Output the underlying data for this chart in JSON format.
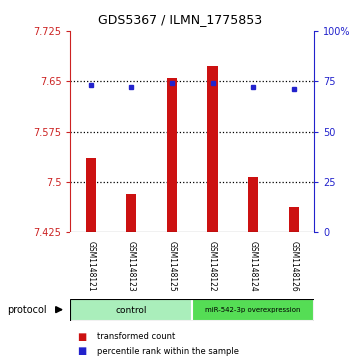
{
  "title": "GDS5367 / ILMN_1775853",
  "samples": [
    "GSM1148121",
    "GSM1148123",
    "GSM1148125",
    "GSM1148122",
    "GSM1148124",
    "GSM1148126"
  ],
  "transformed_counts": [
    7.535,
    7.482,
    7.655,
    7.672,
    7.508,
    7.462
  ],
  "percentile_ranks": [
    73,
    72,
    74,
    74,
    72,
    71
  ],
  "bar_color": "#cc1111",
  "dot_color": "#2222cc",
  "ylim_left": [
    7.425,
    7.725
  ],
  "ylim_right": [
    0,
    100
  ],
  "yticks_left": [
    7.425,
    7.5,
    7.575,
    7.65,
    7.725
  ],
  "yticks_right": [
    0,
    25,
    50,
    75,
    100
  ],
  "ytick_labels_left": [
    "7.425",
    "7.5",
    "7.575",
    "7.65",
    "7.725"
  ],
  "ytick_labels_right": [
    "0",
    "25",
    "50",
    "75",
    "100%"
  ],
  "hlines": [
    7.5,
    7.575,
    7.65
  ],
  "bar_width": 0.25,
  "background_color": "#ffffff",
  "legend_bar_label": "transformed count",
  "legend_dot_label": "percentile rank within the sample",
  "protocol_label": "protocol",
  "group_label_control": "control",
  "group_label_mir": "miR-542-3p overexpression",
  "control_color": "#aaeebb",
  "mir_color": "#55dd55",
  "sample_box_color": "#cccccc"
}
